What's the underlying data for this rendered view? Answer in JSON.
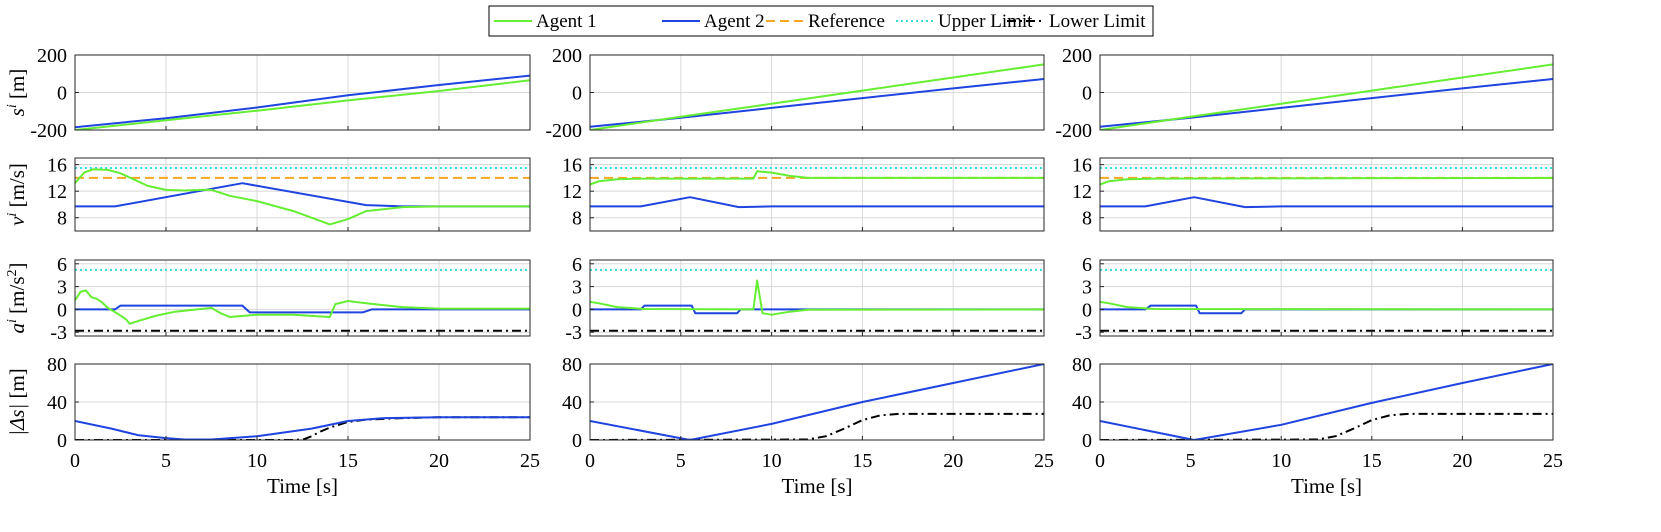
{
  "chart_data": {
    "type": "line",
    "title": "",
    "xlabel": "Time [s]",
    "xlim": [
      0,
      25
    ],
    "xticks": [
      0,
      5,
      10,
      15,
      20,
      25
    ],
    "legend": {
      "placement": "top-center",
      "entries": [
        {
          "name": "Agent 1",
          "color": "#66ee33",
          "style": "solid"
        },
        {
          "name": "Agent 2",
          "color": "#1f44e0",
          "style": "solid"
        },
        {
          "name": "Reference",
          "color": "#f5a623",
          "style": "dashed"
        },
        {
          "name": "Upper Limit",
          "color": "#33dddd",
          "style": "dotted"
        },
        {
          "name": "Lower Limit",
          "color": "#000000",
          "style": "dashdot"
        }
      ]
    },
    "rows": [
      {
        "key": "s",
        "ylabel_var": "s",
        "ylabel_sup": "i",
        "ylabel_unit": " [m]",
        "ylim": [
          -200,
          200
        ],
        "yticks": [
          -200,
          0,
          200
        ]
      },
      {
        "key": "v",
        "ylabel_var": "v",
        "ylabel_sup": "i",
        "ylabel_unit": " [m/s]",
        "ylim": [
          6,
          17
        ],
        "yticks": [
          8,
          12,
          16
        ]
      },
      {
        "key": "a",
        "ylabel_var": "a",
        "ylabel_sup": "i",
        "ylabel_unit": " [m/s",
        "ylabel_unit_sup": "2",
        "ylabel_unit_tail": "]",
        "ylim": [
          -3.5,
          6.5
        ],
        "yticks": [
          -3,
          0,
          3,
          6
        ]
      },
      {
        "key": "ds",
        "ylabel_var": "|Δs|",
        "ylabel_sup": "",
        "ylabel_unit": " [m]",
        "ylim": [
          0,
          80
        ],
        "yticks": [
          0,
          40,
          80
        ]
      }
    ],
    "panels": [
      {
        "s": {
          "Agent 1": [
            [
              0,
              -200
            ],
            [
              5,
              -148
            ],
            [
              10,
              -97
            ],
            [
              15,
              -42
            ],
            [
              20,
              8
            ],
            [
              25,
              65
            ]
          ],
          "Agent 2": [
            [
              0,
              -185
            ],
            [
              5,
              -137
            ],
            [
              10,
              -80
            ],
            [
              15,
              -15
            ],
            [
              20,
              40
            ],
            [
              25,
              90
            ]
          ]
        },
        "v": {
          "Agent 1": [
            [
              0,
              13.2
            ],
            [
              0.5,
              14.8
            ],
            [
              1,
              15.3
            ],
            [
              1.8,
              15.2
            ],
            [
              2.5,
              14.7
            ],
            [
              3.2,
              13.8
            ],
            [
              4,
              12.8
            ],
            [
              5,
              12.2
            ],
            [
              6,
              12.1
            ],
            [
              7,
              12.2
            ],
            [
              7.5,
              12.2
            ],
            [
              8.5,
              11.3
            ],
            [
              10,
              10.5
            ],
            [
              12,
              9
            ],
            [
              13,
              8
            ],
            [
              14,
              7
            ],
            [
              15,
              7.8
            ],
            [
              16,
              9
            ],
            [
              18,
              9.6
            ],
            [
              20,
              9.7
            ],
            [
              25,
              9.7
            ]
          ],
          "Agent 2": [
            [
              0,
              9.7
            ],
            [
              2.2,
              9.7
            ],
            [
              9.2,
              13.2
            ],
            [
              16,
              9.9
            ],
            [
              18,
              9.7
            ],
            [
              25,
              9.7
            ]
          ],
          "Reference": [
            [
              0,
              14
            ],
            [
              25,
              14
            ]
          ],
          "Upper Limit": [
            [
              0,
              15.5
            ],
            [
              25,
              15.5
            ]
          ]
        },
        "a": {
          "Agent 1": [
            [
              0,
              1.2
            ],
            [
              0.3,
              2.3
            ],
            [
              0.6,
              2.5
            ],
            [
              0.9,
              1.6
            ],
            [
              1.2,
              1.4
            ],
            [
              1.5,
              0.9
            ],
            [
              1.8,
              0.2
            ],
            [
              2.3,
              -0.5
            ],
            [
              2.8,
              -1.3
            ],
            [
              3,
              -1.9
            ],
            [
              3.5,
              -1.5
            ],
            [
              4.5,
              -0.8
            ],
            [
              5.5,
              -0.3
            ],
            [
              7.5,
              0.2
            ],
            [
              8,
              -0.5
            ],
            [
              8.5,
              -1
            ],
            [
              9,
              -0.9
            ],
            [
              10,
              -0.7
            ],
            [
              12,
              -0.7
            ],
            [
              14,
              -1
            ],
            [
              14.3,
              0.7
            ],
            [
              15,
              1.1
            ],
            [
              16,
              0.8
            ],
            [
              18,
              0.3
            ],
            [
              20,
              0.1
            ],
            [
              25,
              0.1
            ]
          ],
          "Agent 2": [
            [
              0,
              0
            ],
            [
              2.2,
              0
            ],
            [
              2.5,
              0.5
            ],
            [
              9.2,
              0.5
            ],
            [
              9.6,
              -0.4
            ],
            [
              15.8,
              -0.4
            ],
            [
              16.3,
              0
            ],
            [
              25,
              0
            ]
          ],
          "Upper Limit": [
            [
              0,
              5.2
            ],
            [
              25,
              5.2
            ]
          ],
          "Lower Limit": [
            [
              0,
              -2.8
            ],
            [
              25,
              -2.8
            ]
          ]
        },
        "ds": {
          "Agent 2": [
            [
              0,
              20
            ],
            [
              2,
              12
            ],
            [
              3.5,
              5
            ],
            [
              5,
              2
            ],
            [
              6,
              0.5
            ],
            [
              7.5,
              0.5
            ],
            [
              10,
              4
            ],
            [
              13,
              12
            ],
            [
              15,
              20
            ],
            [
              17,
              23
            ],
            [
              20,
              24
            ],
            [
              25,
              24
            ]
          ],
          "Lower Limit": [
            [
              0,
              0
            ],
            [
              12,
              0
            ],
            [
              12.6,
              1
            ],
            [
              13,
              4
            ],
            [
              13.5,
              9
            ],
            [
              14,
              13
            ],
            [
              15,
              19
            ],
            [
              16,
              21.5
            ],
            [
              18,
              23
            ],
            [
              20,
              24
            ],
            [
              25,
              24
            ]
          ]
        }
      },
      {
        "s": {
          "Agent 1": [
            [
              0,
              -200
            ],
            [
              5,
              -129
            ],
            [
              10,
              -60
            ],
            [
              15,
              10
            ],
            [
              20,
              80
            ],
            [
              25,
              150
            ]
          ],
          "Agent 2": [
            [
              0,
              -183
            ],
            [
              5,
              -135
            ],
            [
              10,
              -82
            ],
            [
              15,
              -30
            ],
            [
              20,
              22
            ],
            [
              25,
              72
            ]
          ]
        },
        "v": {
          "Agent 1": [
            [
              0,
              13
            ],
            [
              0.5,
              13.5
            ],
            [
              1.5,
              13.8
            ],
            [
              3,
              13.9
            ],
            [
              9,
              13.9
            ],
            [
              9.2,
              15
            ],
            [
              10,
              14.8
            ],
            [
              11,
              14.3
            ],
            [
              12,
              14
            ],
            [
              25,
              14
            ]
          ],
          "Agent 2": [
            [
              0,
              9.7
            ],
            [
              2.8,
              9.7
            ],
            [
              5.5,
              11.1
            ],
            [
              8.2,
              9.6
            ],
            [
              10,
              9.7
            ],
            [
              25,
              9.7
            ]
          ],
          "Reference": [
            [
              0,
              14
            ],
            [
              25,
              14
            ]
          ],
          "Upper Limit": [
            [
              0,
              15.5
            ],
            [
              25,
              15.5
            ]
          ]
        },
        "a": {
          "Agent 1": [
            [
              0,
              1
            ],
            [
              0.5,
              0.8
            ],
            [
              1.5,
              0.3
            ],
            [
              3,
              0.05
            ],
            [
              9,
              0
            ],
            [
              9.2,
              3.8
            ],
            [
              9.5,
              -0.5
            ],
            [
              10,
              -0.7
            ],
            [
              11,
              -0.3
            ],
            [
              12,
              -0.05
            ],
            [
              25,
              0
            ]
          ],
          "Agent 2": [
            [
              0,
              0
            ],
            [
              2.8,
              0
            ],
            [
              3,
              0.5
            ],
            [
              5.6,
              0.5
            ],
            [
              5.8,
              -0.5
            ],
            [
              8.1,
              -0.5
            ],
            [
              8.3,
              0
            ],
            [
              25,
              0
            ]
          ],
          "Upper Limit": [
            [
              0,
              5.2
            ],
            [
              25,
              5.2
            ]
          ],
          "Lower Limit": [
            [
              0,
              -2.8
            ],
            [
              25,
              -2.8
            ]
          ]
        },
        "ds": {
          "Agent 2": [
            [
              0,
              20
            ],
            [
              5.5,
              0
            ],
            [
              10,
              17
            ],
            [
              15,
              40
            ],
            [
              20,
              60
            ],
            [
              25,
              80
            ]
          ],
          "Lower Limit": [
            [
              0,
              0
            ],
            [
              12,
              0.5
            ],
            [
              13,
              4
            ],
            [
              14,
              12
            ],
            [
              15,
              21
            ],
            [
              16,
              26
            ],
            [
              17,
              27.5
            ],
            [
              25,
              27.5
            ]
          ]
        }
      },
      {
        "s": {
          "Agent 1": [
            [
              0,
              -200
            ],
            [
              5,
              -129
            ],
            [
              10,
              -60
            ],
            [
              15,
              10
            ],
            [
              20,
              80
            ],
            [
              25,
              150
            ]
          ],
          "Agent 2": [
            [
              0,
              -183
            ],
            [
              5,
              -135
            ],
            [
              10,
              -82
            ],
            [
              15,
              -30
            ],
            [
              20,
              22
            ],
            [
              25,
              72
            ]
          ]
        },
        "v": {
          "Agent 1": [
            [
              0,
              13
            ],
            [
              0.5,
              13.5
            ],
            [
              1.5,
              13.8
            ],
            [
              3,
              13.9
            ],
            [
              25,
              14
            ]
          ],
          "Agent 2": [
            [
              0,
              9.7
            ],
            [
              2.5,
              9.7
            ],
            [
              5.2,
              11.1
            ],
            [
              8,
              9.6
            ],
            [
              10,
              9.7
            ],
            [
              25,
              9.7
            ]
          ],
          "Reference": [
            [
              0,
              14
            ],
            [
              25,
              14
            ]
          ],
          "Upper Limit": [
            [
              0,
              15.5
            ],
            [
              25,
              15.5
            ]
          ]
        },
        "a": {
          "Agent 1": [
            [
              0,
              1
            ],
            [
              0.5,
              0.8
            ],
            [
              1.5,
              0.3
            ],
            [
              3,
              0.05
            ],
            [
              25,
              0
            ]
          ],
          "Agent 2": [
            [
              0,
              0
            ],
            [
              2.5,
              0
            ],
            [
              2.8,
              0.5
            ],
            [
              5.3,
              0.5
            ],
            [
              5.5,
              -0.5
            ],
            [
              7.8,
              -0.5
            ],
            [
              8,
              0
            ],
            [
              25,
              0
            ]
          ],
          "Upper Limit": [
            [
              0,
              5.2
            ],
            [
              25,
              5.2
            ]
          ],
          "Lower Limit": [
            [
              0,
              -2.8
            ],
            [
              25,
              -2.8
            ]
          ]
        },
        "ds": {
          "Agent 2": [
            [
              0,
              20
            ],
            [
              5.2,
              0
            ],
            [
              10,
              16
            ],
            [
              15,
              39
            ],
            [
              20,
              60
            ],
            [
              25,
              80
            ]
          ],
          "Lower Limit": [
            [
              0,
              0
            ],
            [
              12,
              0.5
            ],
            [
              13,
              4
            ],
            [
              14,
              12
            ],
            [
              15,
              21
            ],
            [
              16,
              26
            ],
            [
              17,
              27.5
            ],
            [
              25,
              27.5
            ]
          ]
        }
      }
    ]
  }
}
